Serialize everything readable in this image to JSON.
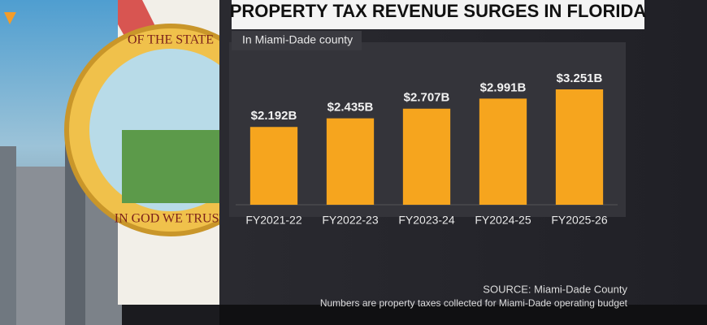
{
  "seal": {
    "top_text": "OF THE STATE",
    "bottom_text": "IN GOD WE TRUST"
  },
  "chart_data": {
    "type": "bar",
    "title": "PROPERTY TAX REVENUE SURGES IN FLORIDA",
    "subtitle": "In Miami-Dade county",
    "categories": [
      "FY2021-22",
      "FY2022-23",
      "FY2023-24",
      "FY2024-25",
      "FY2025-26"
    ],
    "values": [
      2.192,
      2.435,
      2.707,
      2.991,
      3.251
    ],
    "value_labels": [
      "$2.192B",
      "$2.435B",
      "$2.707B",
      "$2.991B",
      "$3.251B"
    ],
    "color": "#f6a51e",
    "source": "SOURCE: Miami-Dade County",
    "note": "Numbers are property taxes collected for Miami-Dade operating budget"
  }
}
